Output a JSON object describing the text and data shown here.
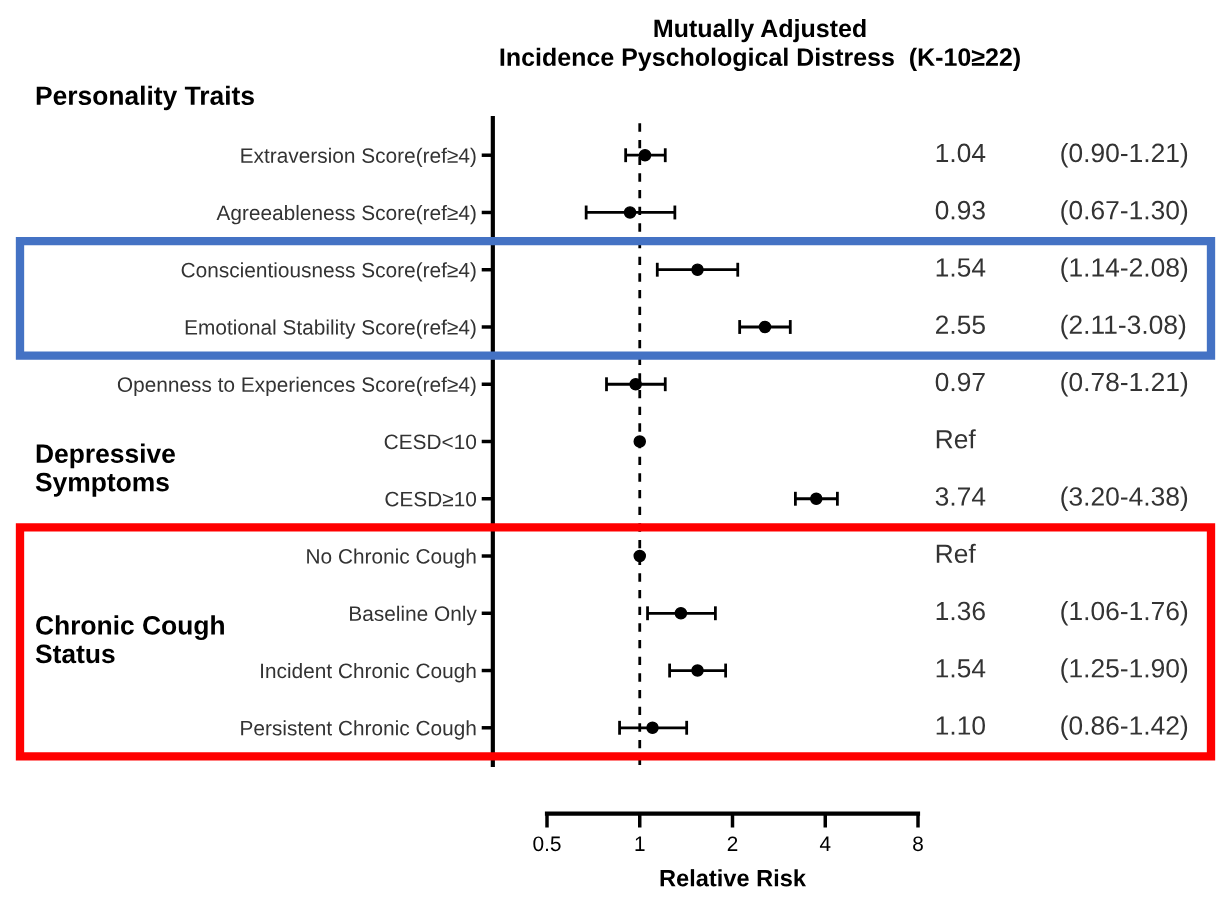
{
  "chart_data": {
    "type": "scatter",
    "orientation": "horizontal",
    "title": "Mutually Adjusted\nIncidence Pyschological Distress  (K-10≥22)",
    "xlabel": "Relative Risk",
    "categories": [
      "Extraversion Score(ref≥4)",
      "Agreeableness Score(ref≥4)",
      "Conscientiousness Score(ref≥4)",
      "Emotional Stability Score(ref≥4)",
      "Openness to Experiences Score(ref≥4)",
      "CESD<10",
      "CESD≥10",
      "No Chronic Cough",
      "Baseline Only",
      "Incident Chronic Cough",
      "Persistent Chronic Cough"
    ],
    "values": [
      1.04,
      0.93,
      1.54,
      2.55,
      0.97,
      1.0,
      3.74,
      1.0,
      1.36,
      1.54,
      1.1
    ],
    "errors": [
      [
        0.9,
        1.21
      ],
      [
        0.67,
        1.3
      ],
      [
        1.14,
        2.08
      ],
      [
        2.11,
        3.08
      ],
      [
        0.78,
        1.21
      ],
      null,
      [
        3.2,
        4.38
      ],
      null,
      [
        1.06,
        1.76
      ],
      [
        1.25,
        1.9
      ],
      [
        0.86,
        1.42
      ]
    ],
    "value_labels": [
      "1.04 (0.90-1.21)",
      "0.93 (0.67-1.30)",
      "1.54 (1.14-2.08)",
      "2.55 (2.11-3.08)",
      "0.97 (0.78-1.21)",
      null,
      "3.74 (3.20-4.38)",
      null,
      "1.36 (1.06-1.76)",
      "1.54 (1.25-1.90)",
      "1.10 (0.86-1.42)"
    ],
    "color": "#000000",
    "marker": "circle",
    "log": "x",
    "xlim": [
      0.5,
      8
    ],
    "xticks": [
      0.5,
      1,
      2,
      4,
      8
    ],
    "ref_lines": [
      {
        "axis": "x",
        "value": 1,
        "line_style": "dashed",
        "color": "#000000"
      }
    ],
    "annotations": [
      "Personality Traits",
      "Depressive\nSymptoms",
      "Chronic Cough\nStatus",
      "Ref",
      "Ref"
    ]
  }
}
